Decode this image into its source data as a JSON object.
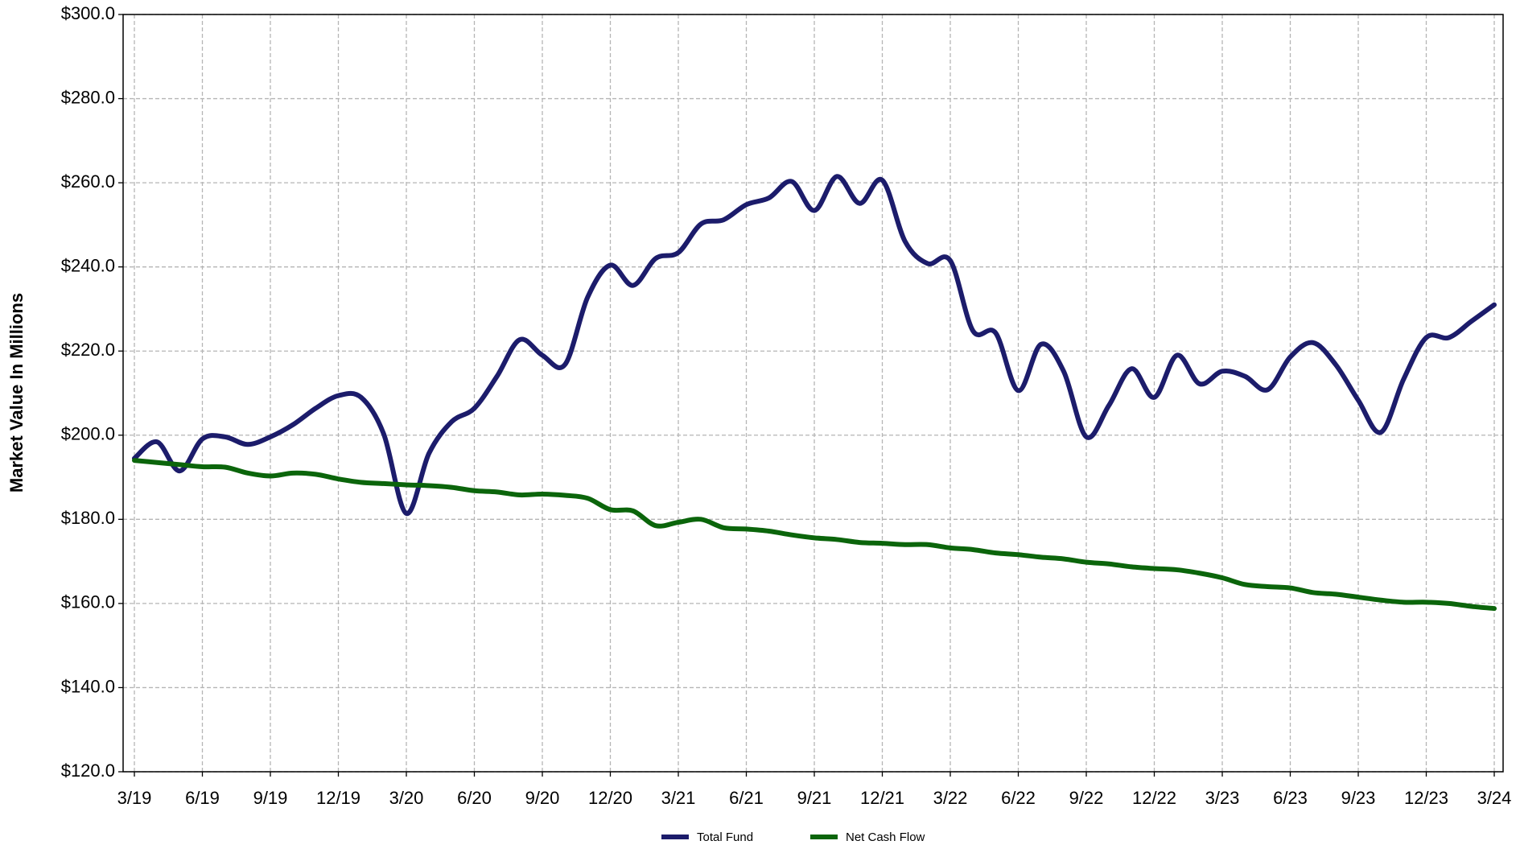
{
  "chart_data": {
    "type": "line",
    "y_label": "Market Value In Millions",
    "categories": [
      "3/19",
      null,
      null,
      "6/19",
      null,
      null,
      "9/19",
      null,
      null,
      "12/19",
      null,
      null,
      "3/20",
      null,
      null,
      "6/20",
      null,
      null,
      "9/20",
      null,
      null,
      "12/20",
      null,
      null,
      "3/21",
      null,
      null,
      "6/21",
      null,
      null,
      "9/21",
      null,
      null,
      "12/21",
      null,
      null,
      "3/22",
      null,
      null,
      "6/22",
      null,
      null,
      "9/22",
      null,
      null,
      "12/22",
      null,
      null,
      "3/23",
      null,
      null,
      "6/23",
      null,
      null,
      "9/23",
      null,
      null,
      "12/23",
      null,
      null,
      "3/24"
    ],
    "series": [
      {
        "name": "Total Fund",
        "color": "#1c1c6b",
        "values": [
          194.5,
          198.4,
          191.5,
          199.1,
          199.6,
          197.8,
          199.6,
          202.5,
          206.4,
          209.4,
          209,
          200.3,
          181.4,
          195.7,
          203.2,
          206.4,
          214,
          222.7,
          219,
          216.8,
          232.8,
          240.4,
          235.6,
          242,
          243.4,
          250.2,
          251.2,
          254.8,
          256.4,
          260.3,
          253.4,
          261.5,
          255.1,
          260.6,
          246.1,
          240.8,
          241.5,
          224.8,
          224.3,
          210.6,
          221.6,
          215.2,
          199.6,
          207.1,
          215.8,
          209,
          219,
          212.2,
          215.2,
          214,
          210.8,
          218.6,
          222,
          216.8,
          208.3,
          200.7,
          213.3,
          223.2,
          223.2,
          227.1,
          231
        ]
      },
      {
        "name": "Net Cash Flow",
        "color": "#0b650b",
        "values": [
          194,
          193.5,
          193,
          192.5,
          192.4,
          191,
          190.3,
          191,
          190.7,
          189.6,
          188.8,
          188.5,
          188.2,
          188,
          187.6,
          186.8,
          186.5,
          185.8,
          186,
          185.7,
          185,
          182.3,
          182,
          178.5,
          179.3,
          180,
          178,
          177.7,
          177.2,
          176.3,
          175.6,
          175.2,
          174.5,
          174.3,
          174,
          174,
          173.2,
          172.8,
          172,
          171.6,
          171,
          170.6,
          169.8,
          169.4,
          168.7,
          168.3,
          168,
          167.2,
          166.1,
          164.5,
          164,
          163.7,
          162.6,
          162.2,
          161.5,
          160.8,
          160.3,
          160.3,
          160,
          159.3,
          158.8
        ]
      }
    ],
    "ylim": [
      120,
      300
    ],
    "yticks": [
      {
        "value": 120,
        "label": "$120.0"
      },
      {
        "value": 140,
        "label": "$140.0"
      },
      {
        "value": 160,
        "label": "$160.0"
      },
      {
        "value": 180,
        "label": "$180.0"
      },
      {
        "value": 200,
        "label": "$200.0"
      },
      {
        "value": 220,
        "label": "$220.0"
      },
      {
        "value": 240,
        "label": "$240.0"
      },
      {
        "value": 260,
        "label": "$260.0"
      },
      {
        "value": 280,
        "label": "$280.0"
      },
      {
        "value": 300,
        "label": "$300.0"
      }
    ],
    "grid": true,
    "legend": "bottom"
  }
}
